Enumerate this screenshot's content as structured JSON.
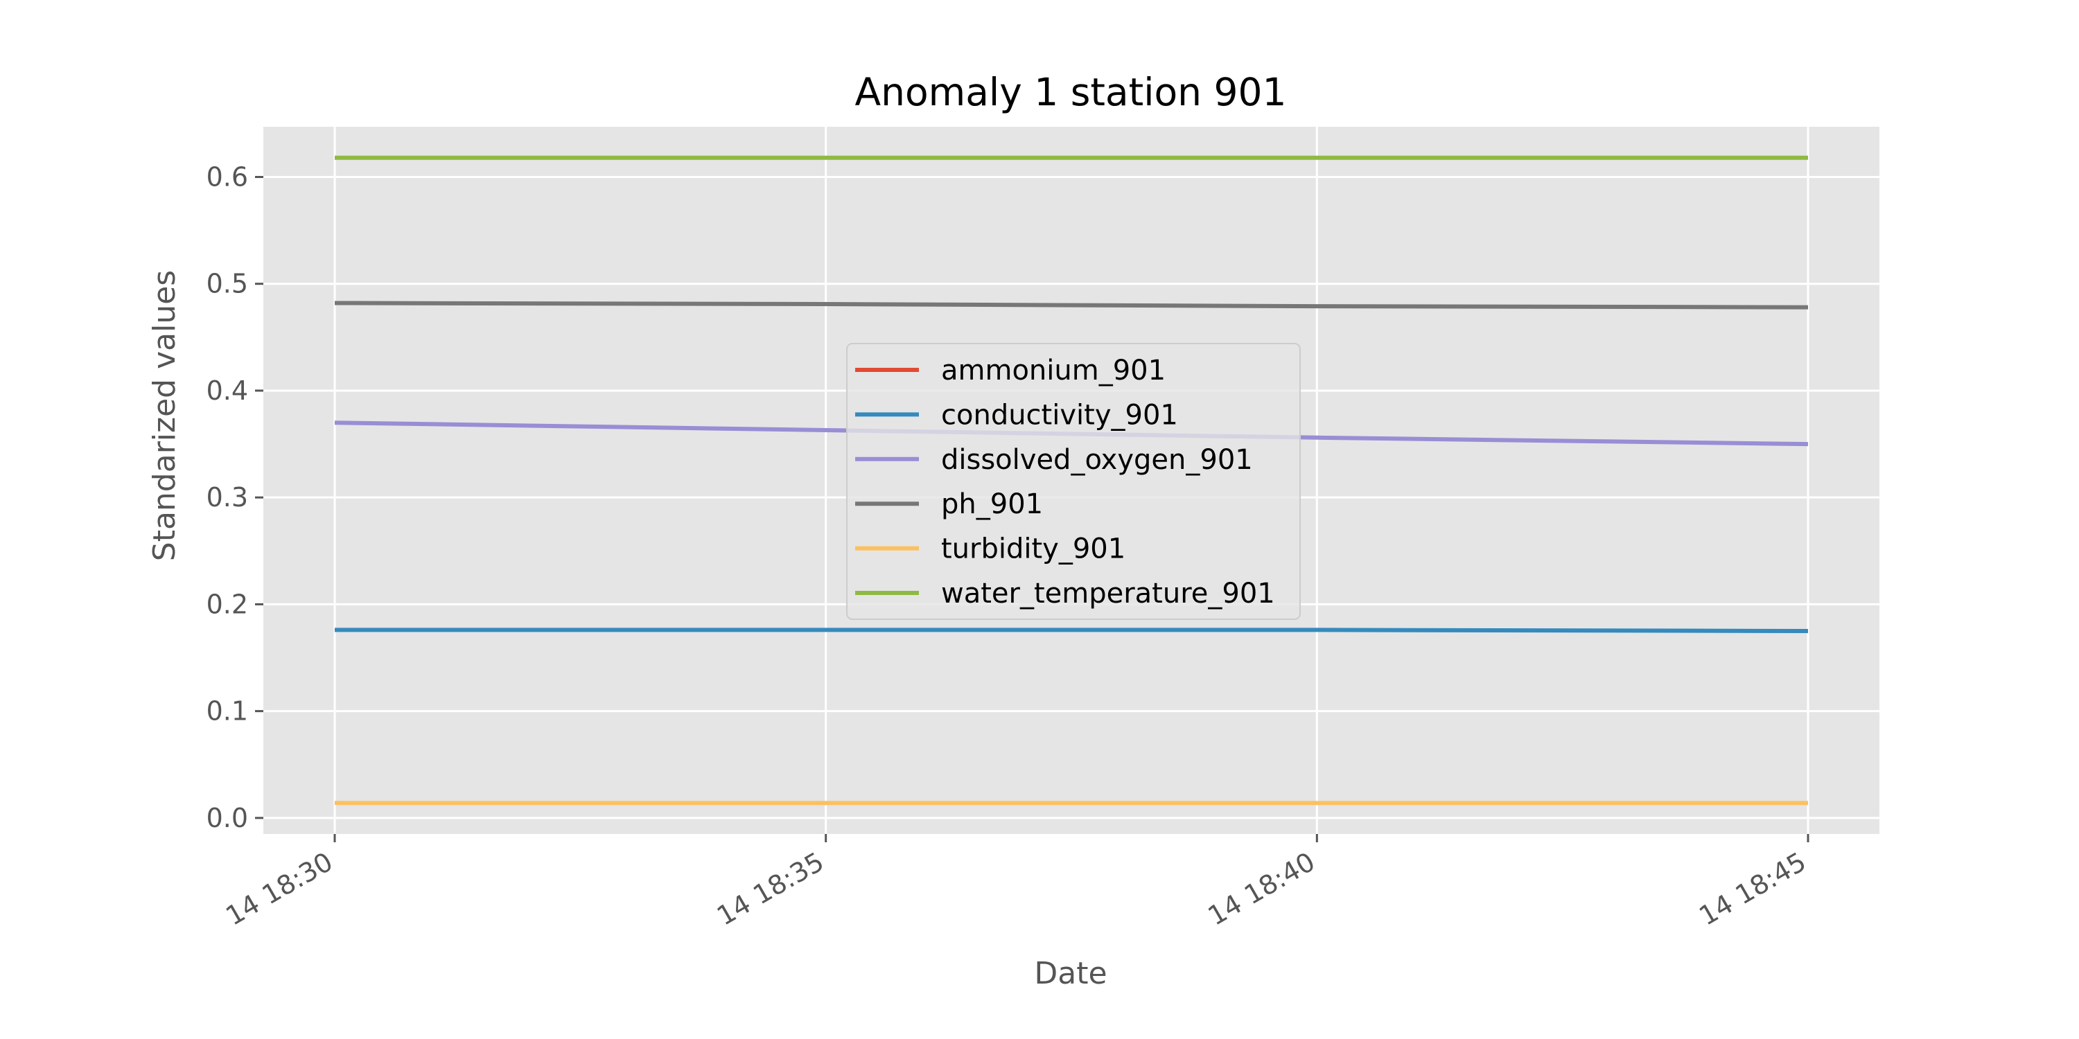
{
  "chart_data": {
    "type": "line",
    "title": "Anomaly 1 station 901",
    "xlabel": "Date",
    "ylabel": "Standarized values",
    "x": [
      "14 18:30",
      "14 18:35",
      "14 18:40",
      "14 18:45"
    ],
    "x_tick_labels": [
      "14 18:30",
      "14 18:35",
      "14 18:40",
      "14 18:45"
    ],
    "y_ticks": [
      0.0,
      0.1,
      0.2,
      0.3,
      0.4,
      0.5,
      0.6
    ],
    "y_tick_labels": [
      "0.0",
      "0.1",
      "0.2",
      "0.3",
      "0.4",
      "0.5",
      "0.6"
    ],
    "ylim": [
      -0.015,
      0.647
    ],
    "grid": true,
    "legend_position": "center",
    "series": [
      {
        "name": "ammonium_901",
        "color": "#E24A33",
        "values": [
          null,
          null,
          null,
          null
        ]
      },
      {
        "name": "conductivity_901",
        "color": "#348ABD",
        "values": [
          0.176,
          0.176,
          0.176,
          0.175
        ]
      },
      {
        "name": "dissolved_oxygen_901",
        "color": "#988ED5",
        "values": [
          0.37,
          0.363,
          0.356,
          0.35
        ]
      },
      {
        "name": "ph_901",
        "color": "#777777",
        "values": [
          0.482,
          0.481,
          0.479,
          0.478
        ]
      },
      {
        "name": "turbidity_901",
        "color": "#FBC15E",
        "values": [
          0.014,
          0.014,
          0.014,
          0.014
        ]
      },
      {
        "name": "water_temperature_901",
        "color": "#8EBA42",
        "values": [
          0.618,
          0.618,
          0.618,
          0.618
        ]
      }
    ],
    "colors": {
      "plot_background": "#E5E5E5",
      "grid": "#FFFFFF",
      "tick": "#555555"
    }
  }
}
